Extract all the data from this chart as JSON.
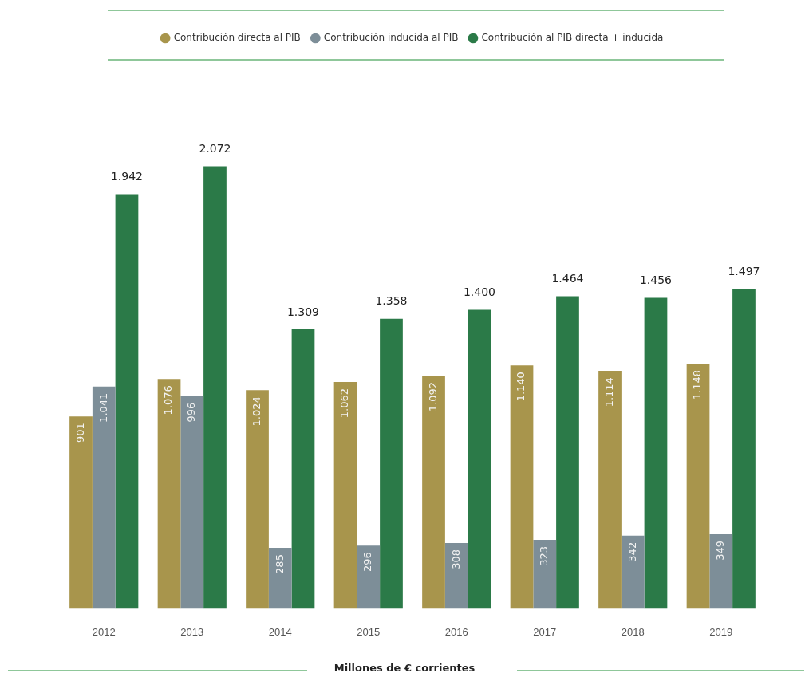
{
  "chart_data": {
    "type": "bar",
    "xlabel": "Millones de € corrientes",
    "legend": "top",
    "categories": [
      "2012",
      "2013",
      "2014",
      "2015",
      "2016",
      "2017",
      "2018",
      "2019"
    ],
    "series": [
      {
        "name": "Contribución directa al PIB",
        "color": "#a8954c",
        "values": [
          901,
          1076,
          1024,
          1062,
          1092,
          1140,
          1114,
          1148
        ],
        "value_labels": [
          "901",
          "1.076",
          "1.024",
          "1.062",
          "1.092",
          "1.140",
          "1.114",
          "1.148"
        ]
      },
      {
        "name": "Contribución inducida al PIB",
        "color": "#7d8e98",
        "values": [
          1041,
          996,
          285,
          296,
          308,
          323,
          342,
          349
        ],
        "value_labels": [
          "1.041",
          "996",
          "285",
          "296",
          "308",
          "323",
          "342",
          "349"
        ]
      },
      {
        "name": "Contribución al PIB directa + inducida",
        "color": "#2b7a48",
        "values": [
          1942,
          2072,
          1309,
          1358,
          1400,
          1464,
          1456,
          1497
        ],
        "value_labels": [
          "1.942",
          "2.072",
          "1.309",
          "1.358",
          "1.400",
          "1.464",
          "1.456",
          "1.497"
        ]
      }
    ]
  }
}
